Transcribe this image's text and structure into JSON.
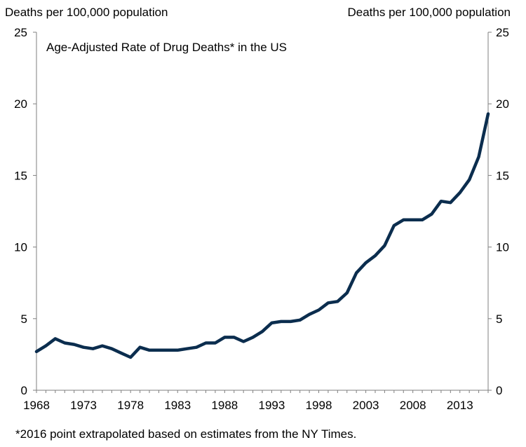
{
  "chart_data": {
    "type": "line",
    "title": "Age-Adjusted Rate of Drug Deaths* in the US",
    "ylabel_left": "Deaths per 100,000 population",
    "ylabel_right": "Deaths per 100,000 population",
    "footnote": "*2016 point extrapolated based on estimates from the NY Times.",
    "xlim": [
      1968,
      2016
    ],
    "ylim": [
      0,
      25
    ],
    "xticks": [
      "1968",
      "1973",
      "1978",
      "1983",
      "1988",
      "1993",
      "1998",
      "2003",
      "2008",
      "2013"
    ],
    "yticks": [
      "0",
      "5",
      "10",
      "15",
      "20",
      "25"
    ],
    "grid": false,
    "series": [
      {
        "color": "#0b2d4e",
        "x": [
          1968,
          1969,
          1970,
          1971,
          1972,
          1973,
          1974,
          1975,
          1976,
          1977,
          1978,
          1979,
          1980,
          1981,
          1982,
          1983,
          1984,
          1985,
          1986,
          1987,
          1988,
          1989,
          1990,
          1991,
          1992,
          1993,
          1994,
          1995,
          1996,
          1997,
          1998,
          1999,
          2000,
          2001,
          2002,
          2003,
          2004,
          2005,
          2006,
          2007,
          2008,
          2009,
          2010,
          2011,
          2012,
          2013,
          2014,
          2015,
          2016
        ],
        "y": [
          2.7,
          3.1,
          3.6,
          3.3,
          3.2,
          3.0,
          2.9,
          3.1,
          2.9,
          2.6,
          2.3,
          3.0,
          2.8,
          2.8,
          2.8,
          2.8,
          2.9,
          3.0,
          3.3,
          3.3,
          3.7,
          3.7,
          3.4,
          3.7,
          4.1,
          4.7,
          4.8,
          4.8,
          4.9,
          5.3,
          5.6,
          6.1,
          6.2,
          6.8,
          8.2,
          8.9,
          9.4,
          10.1,
          11.5,
          11.9,
          11.9,
          11.9,
          12.3,
          13.2,
          13.1,
          13.8,
          14.7,
          16.3,
          19.3
        ]
      }
    ]
  }
}
